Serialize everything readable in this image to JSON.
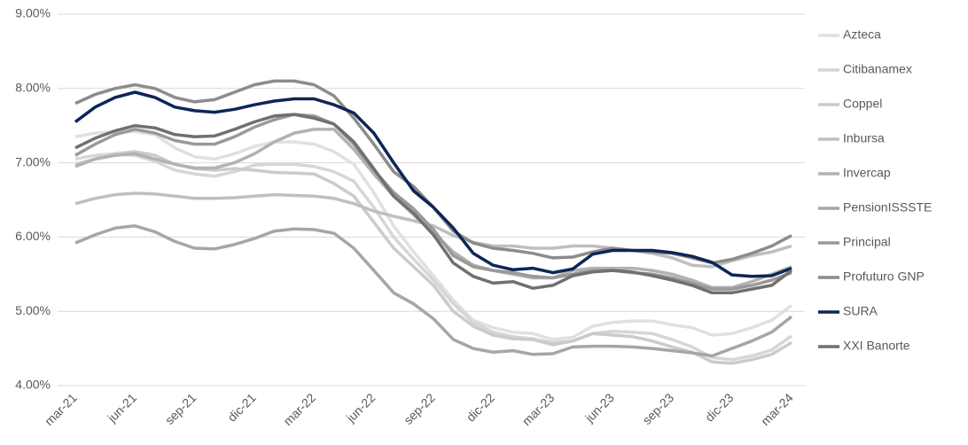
{
  "chart_data": {
    "type": "line",
    "categories": [
      "mar-21",
      null,
      null,
      "jun-21",
      null,
      null,
      "sep-21",
      null,
      null,
      "dic-21",
      null,
      null,
      "mar-22",
      null,
      null,
      "jun-22",
      null,
      null,
      "sep-22",
      null,
      null,
      "dic-22",
      null,
      null,
      "mar-23",
      null,
      null,
      "jun-23",
      null,
      null,
      "sep-23",
      null,
      null,
      "dic-23",
      null,
      null,
      "mar-24"
    ],
    "ylim": [
      4,
      9
    ],
    "yticks": [
      {
        "value": 4,
        "label": "4.00%"
      },
      {
        "value": 5,
        "label": "5.00%"
      },
      {
        "value": 6,
        "label": "6.00%"
      },
      {
        "value": 7,
        "label": "7.00%"
      },
      {
        "value": 8,
        "label": "8.00%"
      },
      {
        "value": 9,
        "label": "9.00%"
      }
    ],
    "grid": true,
    "legend": "right",
    "series": [
      {
        "name": "Azteca",
        "color": "#e0e0e0",
        "values": [
          7.35,
          7.4,
          7.42,
          7.42,
          7.38,
          7.2,
          7.08,
          7.05,
          7.12,
          7.22,
          7.28,
          7.28,
          7.25,
          7.15,
          6.98,
          6.6,
          6.15,
          5.8,
          5.48,
          5.15,
          4.88,
          4.78,
          4.72,
          4.7,
          4.62,
          4.65,
          4.8,
          4.85,
          4.87,
          4.87,
          4.82,
          4.78,
          4.68,
          4.7,
          4.78,
          4.88,
          5.08
        ]
      },
      {
        "name": "Citibanamex",
        "color": "#d6d6d6",
        "values": [
          7.05,
          7.1,
          7.12,
          7.1,
          7.02,
          6.9,
          6.85,
          6.82,
          6.88,
          6.97,
          6.98,
          6.98,
          6.95,
          6.88,
          6.75,
          6.4,
          6.0,
          5.7,
          5.42,
          5.1,
          4.85,
          4.72,
          4.66,
          4.63,
          4.58,
          4.6,
          4.7,
          4.73,
          4.72,
          4.7,
          4.62,
          4.52,
          4.38,
          4.35,
          4.4,
          4.48,
          4.67
        ]
      },
      {
        "name": "Coppel",
        "color": "#cbcbcb",
        "values": [
          6.98,
          7.05,
          7.12,
          7.15,
          7.1,
          6.98,
          6.92,
          6.9,
          6.92,
          6.9,
          6.87,
          6.86,
          6.85,
          6.72,
          6.55,
          6.2,
          5.85,
          5.6,
          5.35,
          5.0,
          4.8,
          4.68,
          4.63,
          4.62,
          4.55,
          4.6,
          4.7,
          4.68,
          4.66,
          4.6,
          4.52,
          4.45,
          4.32,
          4.3,
          4.35,
          4.42,
          4.58
        ]
      },
      {
        "name": "Inbursa",
        "color": "#bfbfbf",
        "values": [
          6.45,
          6.52,
          6.57,
          6.59,
          6.58,
          6.55,
          6.52,
          6.52,
          6.53,
          6.55,
          6.57,
          6.56,
          6.55,
          6.52,
          6.45,
          6.35,
          6.28,
          6.22,
          6.15,
          6.02,
          5.93,
          5.88,
          5.88,
          5.85,
          5.85,
          5.88,
          5.88,
          5.85,
          5.82,
          5.78,
          5.72,
          5.62,
          5.6,
          5.68,
          5.75,
          5.8,
          5.88
        ]
      },
      {
        "name": "Invercap",
        "color": "#b2b2b2",
        "values": [
          6.95,
          7.05,
          7.1,
          7.12,
          7.05,
          6.98,
          6.93,
          6.93,
          7.0,
          7.12,
          7.28,
          7.4,
          7.45,
          7.45,
          7.18,
          6.85,
          6.55,
          6.3,
          6.05,
          5.8,
          5.62,
          5.55,
          5.5,
          5.45,
          5.45,
          5.55,
          5.58,
          5.58,
          5.58,
          5.55,
          5.5,
          5.42,
          5.32,
          5.32,
          5.4,
          5.5,
          5.6
        ]
      },
      {
        "name": "PensionISSSTE",
        "color": "#a6a6a6",
        "values": [
          5.92,
          6.03,
          6.12,
          6.15,
          6.07,
          5.94,
          5.85,
          5.84,
          5.9,
          5.98,
          6.08,
          6.11,
          6.1,
          6.05,
          5.85,
          5.55,
          5.25,
          5.1,
          4.9,
          4.62,
          4.5,
          4.45,
          4.47,
          4.42,
          4.43,
          4.52,
          4.53,
          4.53,
          4.52,
          4.5,
          4.47,
          4.44,
          4.4,
          4.5,
          4.6,
          4.72,
          4.93
        ]
      },
      {
        "name": "Principal",
        "color": "#999999",
        "values": [
          7.1,
          7.25,
          7.38,
          7.45,
          7.4,
          7.3,
          7.25,
          7.25,
          7.35,
          7.48,
          7.58,
          7.65,
          7.63,
          7.52,
          7.25,
          6.9,
          6.6,
          6.38,
          6.1,
          5.75,
          5.6,
          5.55,
          5.52,
          5.47,
          5.45,
          5.5,
          5.55,
          5.55,
          5.52,
          5.5,
          5.45,
          5.38,
          5.3,
          5.3,
          5.35,
          5.42,
          5.52
        ]
      },
      {
        "name": "Profuturo GNP",
        "color": "#8c8c8c",
        "values": [
          7.8,
          7.92,
          8.0,
          8.05,
          8.0,
          7.88,
          7.82,
          7.85,
          7.95,
          8.05,
          8.1,
          8.1,
          8.05,
          7.9,
          7.6,
          7.25,
          6.88,
          6.68,
          6.4,
          6.08,
          5.92,
          5.85,
          5.82,
          5.78,
          5.72,
          5.73,
          5.8,
          5.85,
          5.82,
          5.8,
          5.78,
          5.72,
          5.65,
          5.7,
          5.78,
          5.88,
          6.02
        ]
      },
      {
        "name": "SURA",
        "color": "#0d2557",
        "values": [
          7.55,
          7.75,
          7.88,
          7.95,
          7.88,
          7.75,
          7.7,
          7.68,
          7.72,
          7.78,
          7.83,
          7.86,
          7.86,
          7.78,
          7.67,
          7.4,
          7.0,
          6.62,
          6.4,
          6.12,
          5.78,
          5.62,
          5.56,
          5.58,
          5.52,
          5.57,
          5.77,
          5.82,
          5.82,
          5.82,
          5.79,
          5.74,
          5.66,
          5.49,
          5.47,
          5.48,
          5.58
        ]
      },
      {
        "name": "XXI Banorte",
        "color": "#707070",
        "values": [
          7.2,
          7.33,
          7.43,
          7.5,
          7.47,
          7.38,
          7.35,
          7.36,
          7.45,
          7.55,
          7.63,
          7.65,
          7.6,
          7.52,
          7.28,
          6.92,
          6.55,
          6.32,
          6.03,
          5.65,
          5.47,
          5.38,
          5.4,
          5.31,
          5.35,
          5.48,
          5.53,
          5.55,
          5.53,
          5.48,
          5.42,
          5.35,
          5.25,
          5.25,
          5.3,
          5.35,
          5.55
        ]
      }
    ]
  }
}
